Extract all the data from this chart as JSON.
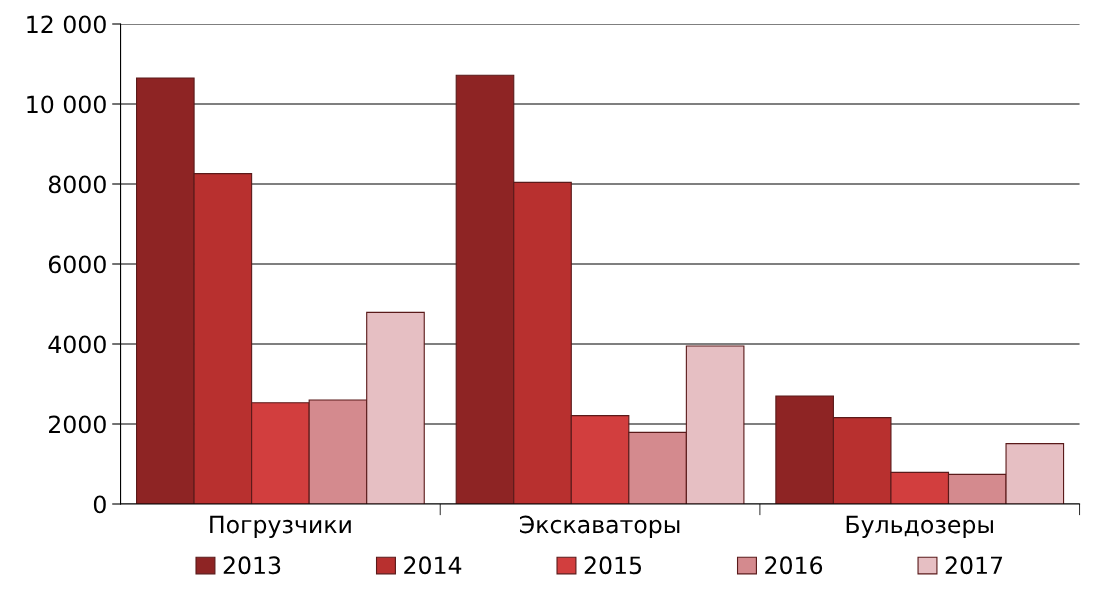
{
  "chart_data": {
    "type": "bar",
    "categories": [
      "Погрузчики",
      "Экскаваторы",
      "Бульдозеры"
    ],
    "series": [
      {
        "name": "2013",
        "color": "#8e2424",
        "values": [
          10650,
          10720,
          2700
        ]
      },
      {
        "name": "2014",
        "color": "#b8302f",
        "values": [
          8260,
          8040,
          2160
        ]
      },
      {
        "name": "2015",
        "color": "#d23e3e",
        "values": [
          2530,
          2210,
          790
        ]
      },
      {
        "name": "2016",
        "color": "#d48a8e",
        "values": [
          2600,
          1790,
          740
        ]
      },
      {
        "name": "2017",
        "color": "#e6bfc3",
        "values": [
          4790,
          3950,
          1510
        ]
      }
    ],
    "ylim": [
      0,
      12000
    ],
    "yticks": [
      0,
      2000,
      4000,
      6000,
      8000,
      {
        "value": 10000,
        "label": "10 000"
      },
      {
        "value": 12000,
        "label": "12 000"
      }
    ],
    "grid": "y",
    "legend": "bottom"
  }
}
